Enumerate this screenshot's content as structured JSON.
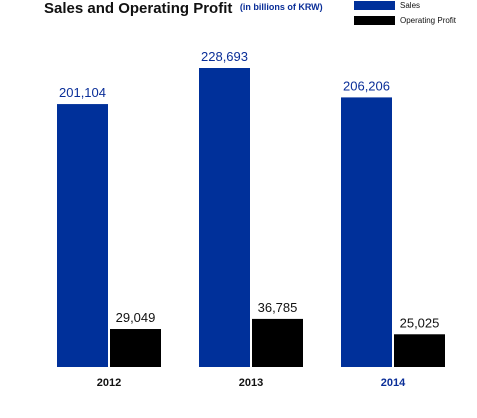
{
  "title": "Sales and Operating Profit",
  "subtitle": "(in billions of KRW)",
  "colors": {
    "sales": "#00309a",
    "operating_profit": "#000000",
    "highlight_label": "#0a2e98",
    "text": "#111111"
  },
  "chart_data": {
    "type": "bar",
    "categories": [
      "2012",
      "2013",
      "2014"
    ],
    "highlighted_category": "2014",
    "series": [
      {
        "name": "Sales",
        "values": [
          201104,
          228693,
          206206
        ],
        "labels": [
          "201,104",
          "228,693",
          "206,206"
        ]
      },
      {
        "name": "Operating Profit",
        "values": [
          29049,
          36785,
          25025
        ],
        "labels": [
          "29,049",
          "36,785",
          "25,025"
        ]
      }
    ],
    "legend_position": "top-right",
    "grid": false
  }
}
